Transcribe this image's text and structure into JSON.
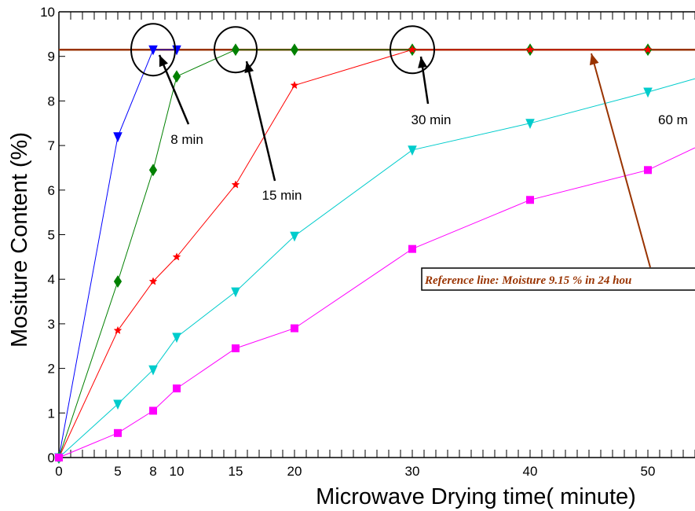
{
  "chart_data": {
    "type": "line",
    "xlabel": "Microwave Drying time( minute)",
    "ylabel": "Mositure Content (%)",
    "xlim": [
      0,
      54
    ],
    "ylim": [
      0,
      10
    ],
    "x_ticks": [
      0,
      5,
      8,
      10,
      15,
      20,
      30,
      40,
      50
    ],
    "y_ticks": [
      0,
      1,
      2,
      3,
      4,
      5,
      6,
      7,
      8,
      9,
      10
    ],
    "grid": false,
    "series": [
      {
        "color": "#0000ff",
        "marker": "triangle-down",
        "x": [
          0,
          5,
          8,
          10
        ],
        "y": [
          0,
          7.2,
          9.15,
          9.15
        ]
      },
      {
        "color": "#008000",
        "marker": "diamond",
        "x": [
          0,
          5,
          8,
          10,
          15,
          20,
          30,
          40,
          50
        ],
        "y": [
          0,
          3.95,
          6.45,
          8.55,
          9.15,
          9.15,
          9.15,
          9.15,
          9.15
        ]
      },
      {
        "color": "#ff0000",
        "marker": "star",
        "x": [
          0,
          5,
          8,
          10,
          15,
          20,
          30,
          40,
          50
        ],
        "y": [
          0,
          2.85,
          3.95,
          4.5,
          6.12,
          8.35,
          9.15,
          9.15,
          9.15
        ]
      },
      {
        "color": "#00cccc",
        "marker": "triangle-down",
        "x": [
          0,
          5,
          8,
          10,
          15,
          20,
          30,
          40,
          50,
          54
        ],
        "y": [
          0,
          1.2,
          1.97,
          2.7,
          3.72,
          4.97,
          6.9,
          7.5,
          8.2,
          8.5
        ]
      },
      {
        "color": "#ff00ff",
        "marker": "square",
        "x": [
          0,
          5,
          8,
          10,
          15,
          20,
          30,
          40,
          50,
          54
        ],
        "y": [
          0,
          0.55,
          1.05,
          1.55,
          2.45,
          2.9,
          4.68,
          5.78,
          6.45,
          6.95
        ]
      }
    ],
    "reference_line": {
      "y": 9.15,
      "color": "#993300",
      "label": "Reference  line: Moisture 9.15 % in 24 hou"
    },
    "annotations": [
      {
        "label": "8 min",
        "target_x": 8,
        "target_y": 9.15
      },
      {
        "label": "15 min",
        "target_x": 15,
        "target_y": 9.15
      },
      {
        "label": "30 min",
        "target_x": 30,
        "target_y": 9.15
      },
      {
        "label": "60 m",
        "target_x": null,
        "target_y": null
      }
    ]
  }
}
